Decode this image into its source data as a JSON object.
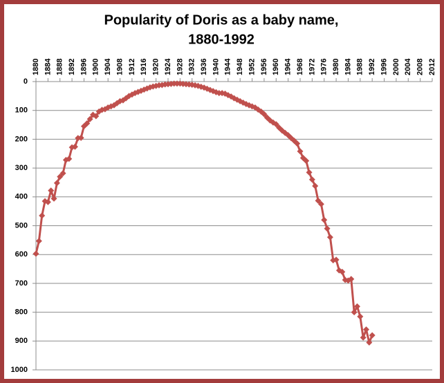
{
  "chart_data": {
    "type": "line",
    "title": [
      "Popularity of Doris as a baby name,",
      "1880-1992"
    ],
    "x": [
      1880,
      1881,
      1882,
      1883,
      1884,
      1885,
      1886,
      1887,
      1888,
      1889,
      1890,
      1891,
      1892,
      1893,
      1894,
      1895,
      1896,
      1897,
      1898,
      1899,
      1900,
      1901,
      1902,
      1903,
      1904,
      1905,
      1906,
      1907,
      1908,
      1909,
      1910,
      1911,
      1912,
      1913,
      1914,
      1915,
      1916,
      1917,
      1918,
      1919,
      1920,
      1921,
      1922,
      1923,
      1924,
      1925,
      1926,
      1927,
      1928,
      1929,
      1930,
      1931,
      1932,
      1933,
      1934,
      1935,
      1936,
      1937,
      1938,
      1939,
      1940,
      1941,
      1942,
      1943,
      1944,
      1945,
      1946,
      1947,
      1948,
      1949,
      1950,
      1951,
      1952,
      1953,
      1954,
      1955,
      1956,
      1957,
      1958,
      1959,
      1960,
      1961,
      1962,
      1963,
      1964,
      1965,
      1966,
      1967,
      1968,
      1969,
      1970,
      1971,
      1972,
      1973,
      1974,
      1975,
      1976,
      1977,
      1978,
      1979,
      1980,
      1981,
      1982,
      1983,
      1984,
      1985,
      1986,
      1987,
      1988,
      1989,
      1990,
      1991,
      1992
    ],
    "series": [
      {
        "name": "Doris",
        "color": "#c0504d",
        "values": [
          597,
          553,
          465,
          415,
          418,
          378,
          406,
          352,
          330,
          318,
          272,
          268,
          228,
          226,
          196,
          195,
          155,
          145,
          130,
          115,
          120,
          104,
          98,
          96,
          90,
          86,
          82,
          75,
          68,
          65,
          58,
          50,
          45,
          40,
          36,
          32,
          28,
          24,
          20,
          17,
          15,
          13,
          12,
          10,
          9,
          8,
          7,
          7,
          7,
          8,
          9,
          10,
          11,
          13,
          15,
          18,
          21,
          25,
          29,
          33,
          37,
          40,
          40,
          42,
          47,
          52,
          58,
          63,
          68,
          73,
          78,
          82,
          86,
          90,
          97,
          104,
          113,
          125,
          135,
          142,
          148,
          160,
          170,
          178,
          186,
          196,
          205,
          215,
          242,
          265,
          275,
          315,
          340,
          362,
          413,
          425,
          480,
          510,
          540,
          620,
          618,
          655,
          660,
          688,
          690,
          685,
          800,
          780,
          815,
          888,
          860,
          905,
          880
        ]
      }
    ],
    "xlim": [
      1880,
      2012
    ],
    "xticks": [
      1880,
      1884,
      1888,
      1892,
      1896,
      1900,
      1904,
      1908,
      1912,
      1916,
      1920,
      1924,
      1928,
      1932,
      1936,
      1940,
      1944,
      1948,
      1952,
      1956,
      1960,
      1964,
      1968,
      1972,
      1976,
      1980,
      1984,
      1988,
      1992,
      1996,
      2000,
      2004,
      2008,
      2012
    ],
    "ylim": [
      1000,
      0
    ],
    "yticks": [
      0,
      100,
      200,
      300,
      400,
      500,
      600,
      700,
      800,
      900,
      1000
    ],
    "grid": true
  }
}
